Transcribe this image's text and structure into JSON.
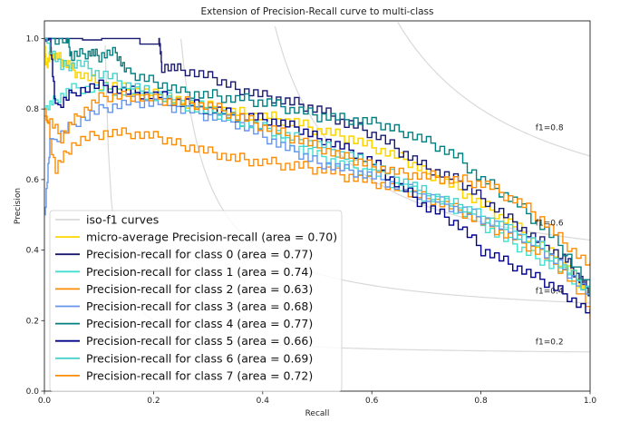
{
  "chart_data": {
    "type": "line",
    "title": "Extension of Precision-Recall curve to multi-class",
    "xlabel": "Recall",
    "ylabel": "Precision",
    "xlim": [
      0.0,
      1.0
    ],
    "ylim": [
      0.0,
      1.05
    ],
    "xticks": [
      "0.0",
      "0.2",
      "0.4",
      "0.6",
      "0.8",
      "1.0"
    ],
    "yticks": [
      "0.0",
      "0.2",
      "0.4",
      "0.6",
      "0.8",
      "1.0"
    ],
    "grid": false,
    "legend_position": "lower-left",
    "iso_f1": [
      {
        "f1": 0.2,
        "label": "f1=0.2"
      },
      {
        "f1": 0.4,
        "label": "f1=0.4"
      },
      {
        "f1": 0.6,
        "label": "f1=0.6"
      },
      {
        "f1": 0.8,
        "label": "f1=0.8"
      }
    ],
    "iso_legend_label": "iso-f1 curves",
    "iso_color": "#d9d9d9",
    "series": [
      {
        "name": "micro-average Precision-recall (area = 0.70)",
        "color": "#ffd700",
        "width": 1.6,
        "points": [
          [
            0,
            1.0
          ],
          [
            0.003,
            0.92
          ],
          [
            0.01,
            0.96
          ],
          [
            0.02,
            0.95
          ],
          [
            0.04,
            0.93
          ],
          [
            0.06,
            0.9
          ],
          [
            0.1,
            0.87
          ],
          [
            0.15,
            0.855
          ],
          [
            0.2,
            0.84
          ],
          [
            0.25,
            0.82
          ],
          [
            0.3,
            0.81
          ],
          [
            0.35,
            0.79
          ],
          [
            0.4,
            0.78
          ],
          [
            0.45,
            0.765
          ],
          [
            0.5,
            0.74
          ],
          [
            0.55,
            0.72
          ],
          [
            0.6,
            0.69
          ],
          [
            0.65,
            0.66
          ],
          [
            0.7,
            0.62
          ],
          [
            0.75,
            0.58
          ],
          [
            0.8,
            0.53
          ],
          [
            0.85,
            0.48
          ],
          [
            0.9,
            0.42
          ],
          [
            0.95,
            0.36
          ],
          [
            0.98,
            0.31
          ],
          [
            1.0,
            0.27
          ]
        ]
      },
      {
        "name": "Precision-recall for class 0 (area = 0.77)",
        "color": "#191970",
        "width": 1.4,
        "points": [
          [
            0,
            1.0
          ],
          [
            0.21,
            1.0
          ],
          [
            0.215,
            0.92
          ],
          [
            0.25,
            0.91
          ],
          [
            0.3,
            0.89
          ],
          [
            0.35,
            0.86
          ],
          [
            0.4,
            0.84
          ],
          [
            0.45,
            0.82
          ],
          [
            0.5,
            0.8
          ],
          [
            0.55,
            0.76
          ],
          [
            0.6,
            0.73
          ],
          [
            0.65,
            0.68
          ],
          [
            0.7,
            0.63
          ],
          [
            0.75,
            0.6
          ],
          [
            0.8,
            0.55
          ],
          [
            0.85,
            0.49
          ],
          [
            0.9,
            0.43
          ],
          [
            0.95,
            0.38
          ],
          [
            0.98,
            0.32
          ],
          [
            1.0,
            0.28
          ]
        ]
      },
      {
        "name": "Precision-recall for class 1 (area = 0.74)",
        "color": "#40e0d0",
        "width": 1.4,
        "points": [
          [
            0,
            0.8
          ],
          [
            0.02,
            0.83
          ],
          [
            0.05,
            0.86
          ],
          [
            0.1,
            0.86
          ],
          [
            0.15,
            0.85
          ],
          [
            0.2,
            0.84
          ],
          [
            0.25,
            0.82
          ],
          [
            0.3,
            0.8
          ],
          [
            0.35,
            0.77
          ],
          [
            0.4,
            0.74
          ],
          [
            0.45,
            0.7
          ],
          [
            0.5,
            0.67
          ],
          [
            0.55,
            0.64
          ],
          [
            0.6,
            0.62
          ],
          [
            0.65,
            0.58
          ],
          [
            0.7,
            0.55
          ],
          [
            0.75,
            0.52
          ],
          [
            0.8,
            0.47
          ],
          [
            0.85,
            0.42
          ],
          [
            0.9,
            0.38
          ],
          [
            0.95,
            0.34
          ],
          [
            1.0,
            0.28
          ]
        ]
      },
      {
        "name": "Precision-recall for class 2 (area = 0.63)",
        "color": "#ff8c00",
        "width": 1.4,
        "points": [
          [
            0,
            0.8
          ],
          [
            0.02,
            0.63
          ],
          [
            0.05,
            0.7
          ],
          [
            0.1,
            0.73
          ],
          [
            0.15,
            0.73
          ],
          [
            0.2,
            0.72
          ],
          [
            0.25,
            0.7
          ],
          [
            0.3,
            0.68
          ],
          [
            0.35,
            0.66
          ],
          [
            0.4,
            0.65
          ],
          [
            0.45,
            0.64
          ],
          [
            0.5,
            0.63
          ],
          [
            0.55,
            0.61
          ],
          [
            0.6,
            0.59
          ],
          [
            0.65,
            0.57
          ],
          [
            0.7,
            0.55
          ],
          [
            0.75,
            0.52
          ],
          [
            0.8,
            0.48
          ],
          [
            0.85,
            0.44
          ],
          [
            0.9,
            0.4
          ],
          [
            0.95,
            0.34
          ],
          [
            1.0,
            0.22
          ]
        ]
      },
      {
        "name": "Precision-recall for class 3 (area = 0.68)",
        "color": "#6495ed",
        "width": 1.4,
        "points": [
          [
            0,
            0.5
          ],
          [
            0.01,
            0.7
          ],
          [
            0.05,
            0.76
          ],
          [
            0.1,
            0.8
          ],
          [
            0.15,
            0.82
          ],
          [
            0.2,
            0.82
          ],
          [
            0.25,
            0.8
          ],
          [
            0.3,
            0.78
          ],
          [
            0.35,
            0.76
          ],
          [
            0.4,
            0.72
          ],
          [
            0.45,
            0.68
          ],
          [
            0.5,
            0.65
          ],
          [
            0.55,
            0.63
          ],
          [
            0.6,
            0.61
          ],
          [
            0.65,
            0.58
          ],
          [
            0.7,
            0.55
          ],
          [
            0.75,
            0.52
          ],
          [
            0.8,
            0.49
          ],
          [
            0.85,
            0.45
          ],
          [
            0.9,
            0.41
          ],
          [
            0.95,
            0.35
          ],
          [
            1.0,
            0.27
          ]
        ]
      },
      {
        "name": "Precision-recall for class 4 (area = 0.77)",
        "color": "#008080",
        "width": 1.4,
        "points": [
          [
            0,
            1.0
          ],
          [
            0.04,
            1.0
          ],
          [
            0.05,
            0.95
          ],
          [
            0.08,
            0.96
          ],
          [
            0.1,
            0.95
          ],
          [
            0.13,
            0.96
          ],
          [
            0.15,
            0.9
          ],
          [
            0.2,
            0.88
          ],
          [
            0.25,
            0.85
          ],
          [
            0.3,
            0.84
          ],
          [
            0.35,
            0.83
          ],
          [
            0.4,
            0.82
          ],
          [
            0.45,
            0.8
          ],
          [
            0.5,
            0.78
          ],
          [
            0.55,
            0.77
          ],
          [
            0.6,
            0.76
          ],
          [
            0.65,
            0.74
          ],
          [
            0.7,
            0.71
          ],
          [
            0.75,
            0.67
          ],
          [
            0.8,
            0.6
          ],
          [
            0.85,
            0.55
          ],
          [
            0.9,
            0.48
          ],
          [
            0.95,
            0.4
          ],
          [
            1.0,
            0.28
          ]
        ]
      },
      {
        "name": "Precision-recall for class 5 (area = 0.66)",
        "color": "#00008b",
        "width": 1.4,
        "points": [
          [
            0,
            1.0
          ],
          [
            0.01,
            1.0
          ],
          [
            0.02,
            0.8
          ],
          [
            0.05,
            0.85
          ],
          [
            0.1,
            0.87
          ],
          [
            0.15,
            0.85
          ],
          [
            0.2,
            0.84
          ],
          [
            0.25,
            0.82
          ],
          [
            0.3,
            0.8
          ],
          [
            0.35,
            0.78
          ],
          [
            0.4,
            0.77
          ],
          [
            0.45,
            0.75
          ],
          [
            0.5,
            0.72
          ],
          [
            0.55,
            0.69
          ],
          [
            0.6,
            0.65
          ],
          [
            0.65,
            0.58
          ],
          [
            0.7,
            0.52
          ],
          [
            0.75,
            0.48
          ],
          [
            0.8,
            0.4
          ],
          [
            0.85,
            0.36
          ],
          [
            0.9,
            0.32
          ],
          [
            0.95,
            0.28
          ],
          [
            1.0,
            0.22
          ]
        ]
      },
      {
        "name": "Precision-recall for class 6 (area = 0.69)",
        "color": "#48d1cc",
        "width": 1.4,
        "points": [
          [
            0,
            1.0
          ],
          [
            0.03,
            0.92
          ],
          [
            0.06,
            0.93
          ],
          [
            0.1,
            0.9
          ],
          [
            0.15,
            0.87
          ],
          [
            0.2,
            0.84
          ],
          [
            0.25,
            0.81
          ],
          [
            0.3,
            0.79
          ],
          [
            0.35,
            0.77
          ],
          [
            0.4,
            0.75
          ],
          [
            0.45,
            0.72
          ],
          [
            0.5,
            0.7
          ],
          [
            0.55,
            0.67
          ],
          [
            0.6,
            0.64
          ],
          [
            0.65,
            0.6
          ],
          [
            0.7,
            0.56
          ],
          [
            0.75,
            0.53
          ],
          [
            0.8,
            0.5
          ],
          [
            0.85,
            0.46
          ],
          [
            0.9,
            0.42
          ],
          [
            0.95,
            0.35
          ],
          [
            1.0,
            0.28
          ]
        ]
      },
      {
        "name": "Precision-recall for class 7 (area = 0.72)",
        "color": "#ff8c00",
        "width": 1.4,
        "points": [
          [
            0,
            0.78
          ],
          [
            0.03,
            0.72
          ],
          [
            0.06,
            0.78
          ],
          [
            0.1,
            0.83
          ],
          [
            0.15,
            0.84
          ],
          [
            0.2,
            0.83
          ],
          [
            0.25,
            0.82
          ],
          [
            0.3,
            0.81
          ],
          [
            0.35,
            0.78
          ],
          [
            0.4,
            0.75
          ],
          [
            0.45,
            0.72
          ],
          [
            0.5,
            0.69
          ],
          [
            0.55,
            0.66
          ],
          [
            0.6,
            0.64
          ],
          [
            0.65,
            0.62
          ],
          [
            0.7,
            0.61
          ],
          [
            0.75,
            0.6
          ],
          [
            0.8,
            0.59
          ],
          [
            0.85,
            0.55
          ],
          [
            0.9,
            0.5
          ],
          [
            0.95,
            0.42
          ],
          [
            1.0,
            0.35
          ]
        ]
      }
    ]
  }
}
